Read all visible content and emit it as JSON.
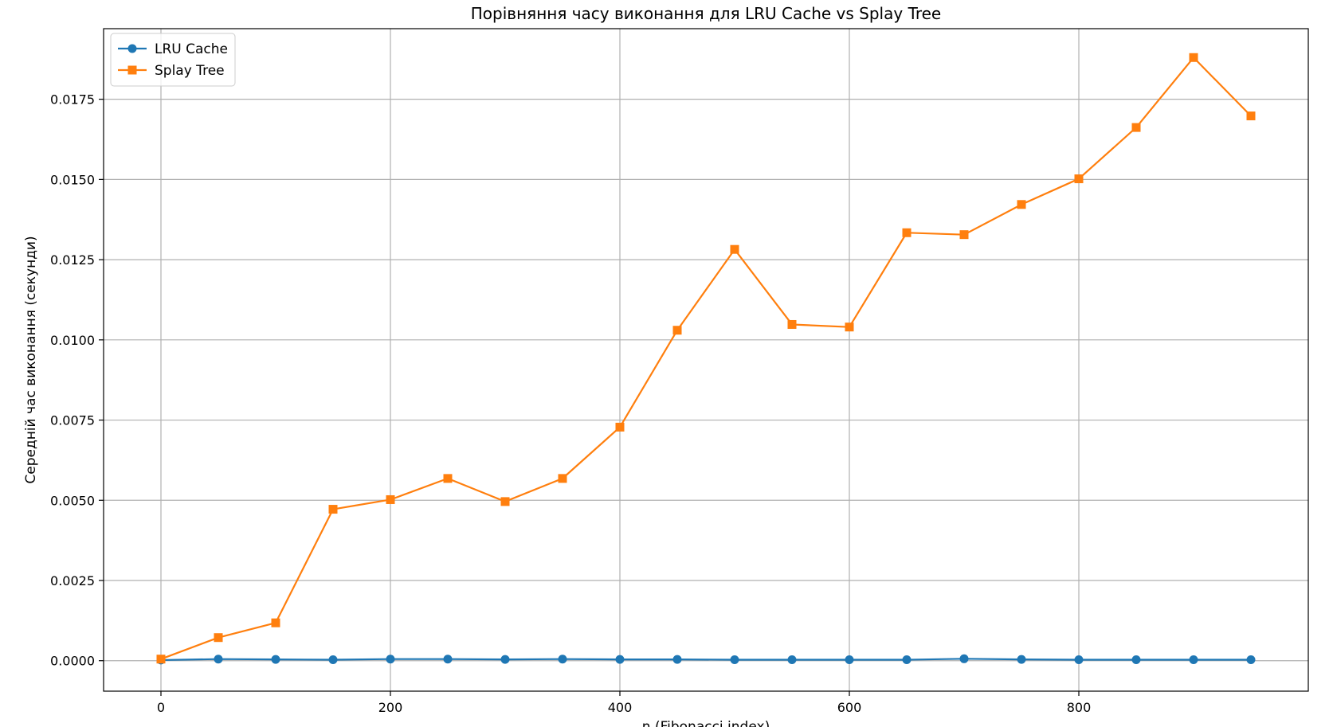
{
  "chart_data": {
    "type": "line",
    "title": "Порівняння часу виконання для LRU Cache vs Splay Tree",
    "xlabel": "n (Fibonacci index)",
    "ylabel": "Середній час виконання (секунди)",
    "x": [
      0,
      50,
      100,
      150,
      200,
      250,
      300,
      350,
      400,
      450,
      500,
      550,
      600,
      650,
      700,
      750,
      800,
      850,
      900,
      950
    ],
    "xlim": [
      -50,
      1000
    ],
    "ylim": [
      -0.00095,
      0.0197
    ],
    "xticks": [
      0,
      200,
      400,
      600,
      800
    ],
    "xtick_labels": [
      "0",
      "200",
      "400",
      "600",
      "800"
    ],
    "yticks": [
      0.0,
      0.0025,
      0.005,
      0.0075,
      0.01,
      0.0125,
      0.015,
      0.0175
    ],
    "ytick_labels": [
      "0.0000",
      "0.0025",
      "0.0050",
      "0.0075",
      "0.0100",
      "0.0125",
      "0.0150",
      "0.0175"
    ],
    "grid": true,
    "legend_position": "top-left",
    "series": [
      {
        "name": "LRU Cache",
        "color": "#1f77b4",
        "marker": "circle",
        "values": [
          2e-05,
          5e-05,
          4e-05,
          3e-05,
          5e-05,
          5e-05,
          4e-05,
          5e-05,
          4e-05,
          4e-05,
          3e-05,
          3e-05,
          3e-05,
          3e-05,
          6e-05,
          4e-05,
          3e-05,
          3e-05,
          3e-05,
          3e-05
        ]
      },
      {
        "name": "Splay Tree",
        "color": "#ff7f0e",
        "marker": "square",
        "values": [
          5e-05,
          0.00072,
          0.00118,
          0.00472,
          0.00502,
          0.00568,
          0.00496,
          0.00568,
          0.00728,
          0.0103,
          0.01282,
          0.01048,
          0.0104,
          0.01334,
          0.01328,
          0.01422,
          0.01502,
          0.01662,
          0.0188,
          0.01698
        ]
      }
    ]
  }
}
